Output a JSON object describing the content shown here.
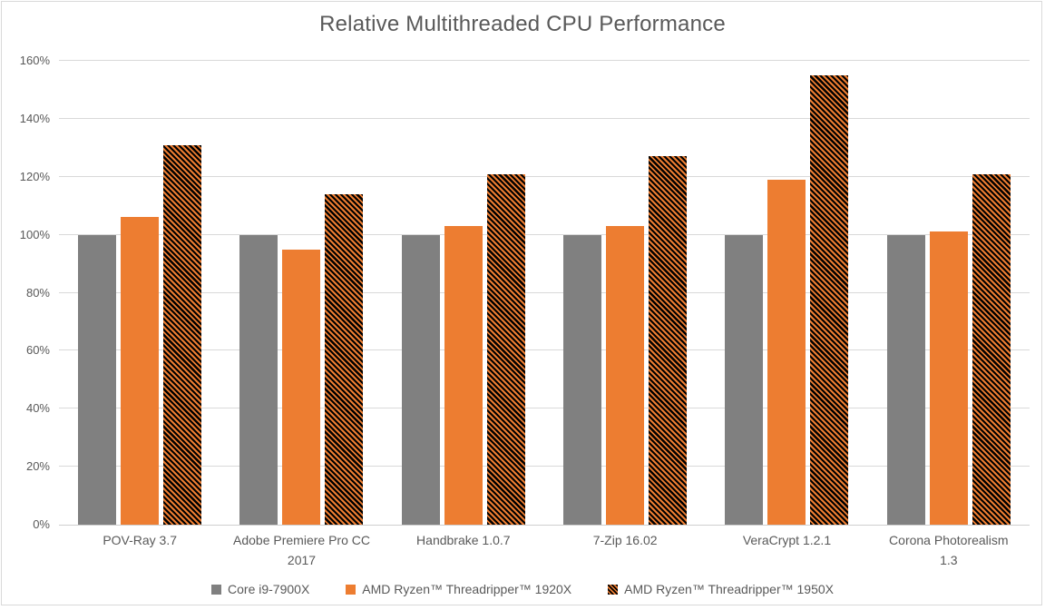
{
  "chart_data": {
    "type": "bar",
    "title": "Relative Multithreaded CPU Performance",
    "categories": [
      "POV-Ray 3.7",
      "Adobe Premiere Pro CC 2017",
      "Handbrake 1.0.7",
      "7-Zip 16.02",
      "VeraCrypt 1.2.1",
      "Corona Photorealism 1.3"
    ],
    "series": [
      {
        "name": "Core i9-7900X",
        "values": [
          100,
          100,
          100,
          100,
          100,
          100
        ],
        "fill": "solid",
        "color": "#808080"
      },
      {
        "name": "AMD Ryzen™ Threadripper™ 1920X",
        "values": [
          106,
          95,
          103,
          103,
          119,
          101
        ],
        "fill": "solid",
        "color": "#ED7D31"
      },
      {
        "name": "AMD Ryzen™ Threadripper™ 1950X",
        "values": [
          131,
          114,
          121,
          127,
          155,
          121
        ],
        "fill": "pattern-diagonal-stripes",
        "color": "#ED7D31",
        "pattern_color": "#000000"
      }
    ],
    "xlabel": "",
    "ylabel": "",
    "ylim": [
      0,
      160
    ],
    "ytick_step": 20,
    "ytick_labels": [
      "0%",
      "20%",
      "40%",
      "60%",
      "80%",
      "100%",
      "120%",
      "140%",
      "160%"
    ],
    "grid": true,
    "legend_position": "bottom",
    "style": {
      "gridline_color": "#D9D9D9",
      "text_color": "#595959",
      "background_color": "#FFFFFF",
      "frame_border_color": "#D9D9D9"
    }
  }
}
